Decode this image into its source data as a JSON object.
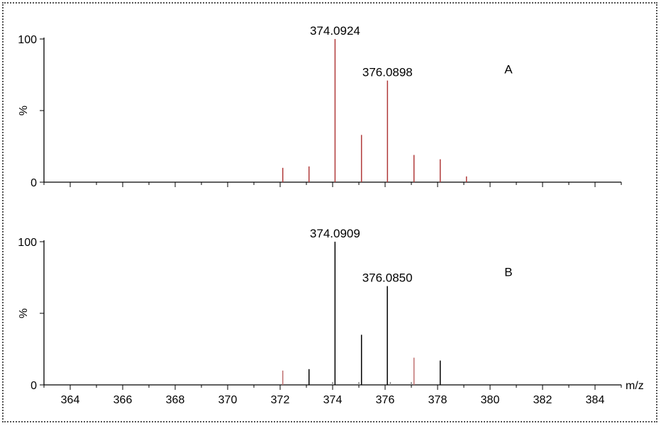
{
  "chart_data": [
    {
      "type": "bar",
      "panel_label": "A",
      "color": "#b03a3a",
      "ylabel": "%",
      "y_ticks": [
        "0",
        "100"
      ],
      "ylim": [
        0,
        100
      ],
      "xlim": [
        363,
        385
      ],
      "peaks": [
        {
          "mz": 372.1,
          "intensity": 10
        },
        {
          "mz": 373.1,
          "intensity": 11
        },
        {
          "mz": 374.0924,
          "intensity": 100,
          "label": "374.0924"
        },
        {
          "mz": 375.1,
          "intensity": 33
        },
        {
          "mz": 376.0898,
          "intensity": 71,
          "label": "376.0898"
        },
        {
          "mz": 377.1,
          "intensity": 19
        },
        {
          "mz": 378.1,
          "intensity": 16
        },
        {
          "mz": 379.1,
          "intensity": 4
        }
      ]
    },
    {
      "type": "bar",
      "panel_label": "B",
      "color": "#000000",
      "ylabel": "%",
      "y_ticks": [
        "0",
        "100"
      ],
      "ylim": [
        0,
        100
      ],
      "xlim": [
        363,
        385
      ],
      "xlabel": "m/z",
      "x_ticks": [
        "364",
        "366",
        "368",
        "370",
        "372",
        "374",
        "376",
        "378",
        "380",
        "382",
        "384"
      ],
      "peaks": [
        {
          "mz": 372.1,
          "intensity": 10,
          "color": "#c07070"
        },
        {
          "mz": 373.1,
          "intensity": 11
        },
        {
          "mz": 374.0,
          "intensity": 2,
          "color": "#888888"
        },
        {
          "mz": 374.0909,
          "intensity": 100,
          "label": "374.0909"
        },
        {
          "mz": 375.0,
          "intensity": 2,
          "color": "#888888"
        },
        {
          "mz": 375.1,
          "intensity": 35
        },
        {
          "mz": 376.085,
          "intensity": 69,
          "label": "376.0850"
        },
        {
          "mz": 376.2,
          "intensity": 2,
          "color": "#888888"
        },
        {
          "mz": 377.0,
          "intensity": 2,
          "color": "#888888"
        },
        {
          "mz": 377.1,
          "intensity": 19,
          "color": "#c07070"
        },
        {
          "mz": 378.1,
          "intensity": 17
        }
      ]
    }
  ]
}
